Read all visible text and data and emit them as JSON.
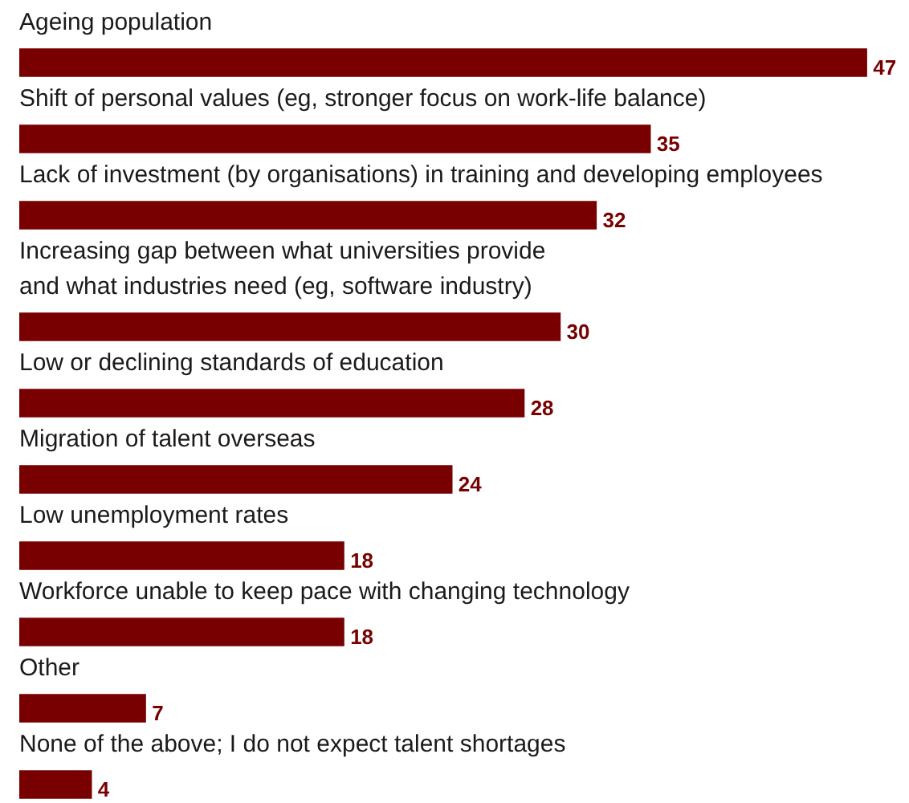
{
  "chart_data": {
    "type": "bar",
    "orientation": "horizontal",
    "categories": [
      "Ageing population",
      "Shift of personal values (eg, stronger focus on work-life balance)",
      "Lack of investment (by organisations) in training and developing employees",
      "Increasing gap between what universities provide\nand what industries need (eg, software industry)",
      "Low or declining standards of education",
      "Migration of talent overseas",
      "Low unemployment rates",
      "Workforce unable to keep pace with changing technology",
      "Other",
      "None of the above; I do not expect talent shortages"
    ],
    "values": [
      47,
      35,
      32,
      30,
      28,
      24,
      18,
      18,
      7,
      4
    ],
    "color": "#780000",
    "data_labels": true
  }
}
